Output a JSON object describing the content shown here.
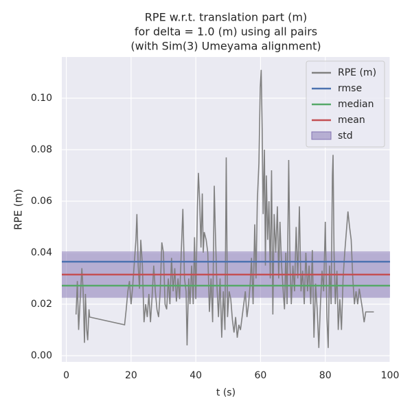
{
  "chart_data": {
    "type": "line",
    "title": [
      "RPE w.r.t. translation part (m)",
      "for delta = 1.0 (m) using all pairs",
      "(with Sim(3) Umeyama alignment)"
    ],
    "x_label": "t (s)",
    "y_label": "RPE (m)",
    "xlim": [
      -1.4,
      100
    ],
    "ylim": [
      -0.0024,
      0.116
    ],
    "xticks": [
      0,
      20,
      40,
      60,
      80,
      100
    ],
    "yticks": [
      {
        "value": 0,
        "label": "0.00"
      },
      {
        "value": 0.02,
        "label": "0.02"
      },
      {
        "value": 0.04,
        "label": "0.04"
      },
      {
        "value": 0.06,
        "label": "0.06"
      },
      {
        "value": 0.08,
        "label": "0.08"
      },
      {
        "value": 0.1,
        "label": "0.10"
      }
    ],
    "grid": true,
    "legend": "upper right",
    "series": [
      {
        "name": "RPE (m)",
        "color": "#808080",
        "x": [
          3.0,
          3.4,
          3.8,
          4.2,
          4.8,
          5.2,
          5.6,
          5.9,
          6.3,
          6.6,
          7.0,
          7.2,
          18.0,
          18.5,
          19.0,
          19.5,
          20.0,
          20.5,
          21.0,
          21.5,
          21.8,
          22.2,
          22.6,
          23.0,
          23.5,
          24.0,
          24.5,
          25.0,
          25.5,
          26.0,
          26.5,
          27.0,
          27.5,
          28.0,
          28.5,
          29.0,
          29.5,
          30.0,
          30.5,
          31.0,
          31.5,
          32.0,
          32.5,
          33.0,
          33.5,
          34.0,
          34.5,
          35.0,
          35.5,
          36.0,
          36.5,
          37.0,
          37.3,
          37.8,
          38.2,
          38.7,
          39.2,
          39.6,
          40.0,
          40.5,
          40.8,
          41.2,
          41.6,
          42.0,
          42.3,
          42.6,
          43.2,
          43.7,
          44.2,
          44.7,
          45.2,
          45.7,
          46.0,
          46.5,
          47.0,
          47.5,
          48.0,
          48.5,
          49.0,
          49.4,
          49.8,
          50.3,
          50.8,
          51.3,
          51.8,
          52.3,
          52.8,
          53.3,
          53.8,
          54.3,
          54.8,
          55.3,
          55.8,
          56.3,
          56.8,
          57.2,
          57.7,
          58.2,
          58.6,
          59.0,
          59.5,
          59.9,
          60.2,
          60.5,
          60.8,
          61.2,
          61.5,
          61.8,
          62.2,
          62.6,
          63.0,
          63.4,
          63.8,
          64.2,
          64.7,
          65.2,
          65.6,
          66.0,
          66.5,
          67.0,
          67.4,
          67.8,
          68.2,
          68.7,
          69.1,
          69.5,
          70.0,
          70.5,
          71.0,
          71.5,
          72.0,
          72.5,
          73.0,
          73.5,
          74.0,
          74.5,
          75.0,
          75.5,
          76.0,
          76.5,
          77.0,
          77.5,
          78.0,
          78.5,
          79.0,
          79.5,
          80.0,
          80.5,
          80.9,
          81.3,
          81.8,
          82.2,
          82.4,
          82.7,
          83.1,
          83.6,
          84.0,
          84.5,
          85.0,
          85.5,
          86.0,
          86.5,
          87.0,
          87.5,
          88.0,
          88.5,
          89.0,
          89.5,
          90.0,
          90.5,
          91.0,
          91.5,
          92.0,
          92.5,
          93.0,
          94.0,
          95.0
        ],
        "values": [
          0.016,
          0.029,
          0.01,
          0.02,
          0.034,
          0.025,
          0.005,
          0.024,
          0.01,
          0.006,
          0.018,
          0.015,
          0.012,
          0.018,
          0.025,
          0.029,
          0.02,
          0.027,
          0.036,
          0.045,
          0.055,
          0.035,
          0.026,
          0.045,
          0.035,
          0.013,
          0.02,
          0.015,
          0.024,
          0.013,
          0.023,
          0.035,
          0.025,
          0.018,
          0.015,
          0.025,
          0.044,
          0.04,
          0.02,
          0.018,
          0.03,
          0.02,
          0.038,
          0.025,
          0.034,
          0.021,
          0.03,
          0.022,
          0.04,
          0.057,
          0.03,
          0.025,
          0.004,
          0.03,
          0.02,
          0.035,
          0.02,
          0.046,
          0.022,
          0.058,
          0.071,
          0.06,
          0.042,
          0.063,
          0.04,
          0.048,
          0.045,
          0.04,
          0.017,
          0.03,
          0.013,
          0.066,
          0.05,
          0.028,
          0.015,
          0.03,
          0.007,
          0.025,
          0.01,
          0.077,
          0.015,
          0.025,
          0.022,
          0.014,
          0.009,
          0.015,
          0.007,
          0.012,
          0.01,
          0.015,
          0.02,
          0.025,
          0.015,
          0.02,
          0.028,
          0.038,
          0.02,
          0.051,
          0.03,
          0.06,
          0.075,
          0.104,
          0.111,
          0.088,
          0.055,
          0.08,
          0.035,
          0.07,
          0.045,
          0.06,
          0.03,
          0.072,
          0.016,
          0.055,
          0.04,
          0.058,
          0.03,
          0.052,
          0.035,
          0.025,
          0.018,
          0.04,
          0.02,
          0.076,
          0.035,
          0.02,
          0.035,
          0.025,
          0.05,
          0.03,
          0.058,
          0.025,
          0.033,
          0.02,
          0.04,
          0.025,
          0.035,
          0.02,
          0.041,
          0.007,
          0.028,
          0.018,
          0.003,
          0.02,
          0.033,
          0.025,
          0.052,
          0.015,
          0.003,
          0.035,
          0.02,
          0.07,
          0.078,
          0.04,
          0.02,
          0.033,
          0.01,
          0.022,
          0.01,
          0.03,
          0.04,
          0.048,
          0.056,
          0.05,
          0.045,
          0.03,
          0.02,
          0.025,
          0.02,
          0.026,
          0.022,
          0.018,
          0.013,
          0.017,
          0.017,
          0.017,
          0.017
        ]
      }
    ],
    "stats": [
      {
        "name": "rmse",
        "value": 0.0365,
        "color": "#4c72b0"
      },
      {
        "name": "median",
        "value": 0.0272,
        "color": "#55a868"
      },
      {
        "name": "mean",
        "value": 0.0315,
        "color": "#c44e52"
      }
    ],
    "std": {
      "name": "std",
      "value": 0.009,
      "color": "#8172b2"
    }
  }
}
